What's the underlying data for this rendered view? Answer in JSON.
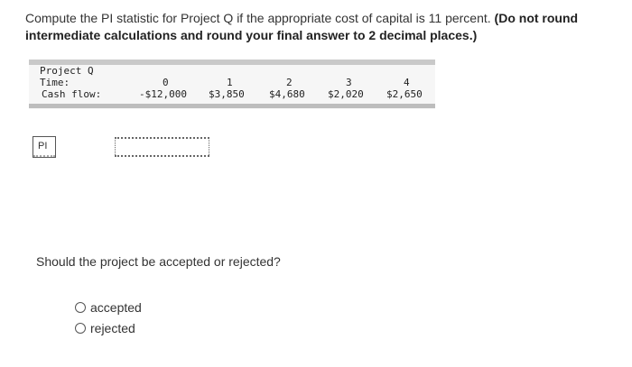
{
  "question": {
    "text": "Compute the PI statistic for Project Q if the appropriate cost of capital is 11 percent.",
    "instruction": "(Do not round intermediate calculations and round your final answer to 2 decimal places.)"
  },
  "cash_flow_table": {
    "project_label": "Project Q",
    "time_label": "Time:",
    "cash_flow_label": "Cash flow:",
    "years": [
      "0",
      "1",
      "2",
      "3",
      "4"
    ],
    "cash_flows": [
      "-$12,000",
      "$3,850",
      "$4,680",
      "$2,020",
      "$2,650"
    ]
  },
  "answer": {
    "pi_label": "PI",
    "pi_value": ""
  },
  "decision": {
    "question": "Should the project be accepted or rejected?",
    "options": [
      "accepted",
      "rejected"
    ]
  }
}
